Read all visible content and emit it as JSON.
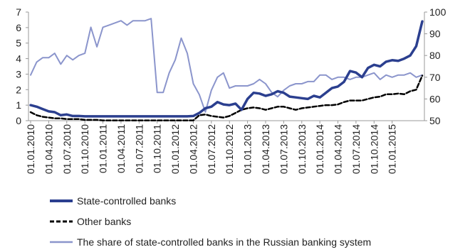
{
  "chart_data": {
    "type": "line",
    "title": "",
    "xlabel": "",
    "ylabel": "",
    "ylim_left": [
      0,
      7
    ],
    "ylim_right": [
      50,
      100
    ],
    "left_ticks": [
      "0",
      "1",
      "2",
      "3",
      "4",
      "5",
      "6",
      "7"
    ],
    "right_ticks": [
      "50",
      "60",
      "70",
      "80",
      "90",
      "100"
    ],
    "x_tick_labels": [
      "01.01.2010",
      "01.04.2010",
      "01.07.2010",
      "01.10.2010",
      "01.01.2011",
      "01.04.2011",
      "01.07.2011",
      "01.10.2011",
      "01.01.2012",
      "01.04.2012",
      "01.07.2012",
      "01.10.2012",
      "01.01.2013",
      "01.04.2013",
      "01.07.2013",
      "01.10.2013",
      "01.01.2014",
      "01.04.2014",
      "01.07.2014",
      "01.10.2014",
      "01.01.2015"
    ],
    "grid": false,
    "legend_position": "bottom",
    "series": [
      {
        "name": "State-controlled banks",
        "axis": "left",
        "color": "#2b3f8f",
        "style": "solid-thick",
        "values": [
          1.0,
          0.9,
          0.75,
          0.6,
          0.55,
          0.35,
          0.4,
          0.3,
          0.3,
          0.28,
          0.28,
          0.28,
          0.28,
          0.28,
          0.28,
          0.28,
          0.28,
          0.28,
          0.28,
          0.28,
          0.28,
          0.28,
          0.28,
          0.28,
          0.28,
          0.28,
          0.28,
          0.3,
          0.5,
          0.8,
          0.9,
          1.2,
          1.05,
          1.0,
          1.1,
          0.7,
          1.4,
          1.8,
          1.75,
          1.6,
          1.7,
          1.9,
          1.8,
          1.55,
          1.5,
          1.45,
          1.4,
          1.6,
          1.5,
          1.8,
          2.1,
          2.2,
          2.5,
          3.2,
          3.1,
          2.8,
          3.4,
          3.6,
          3.5,
          3.8,
          3.9,
          3.85,
          4.0,
          4.2,
          4.8,
          6.4
        ]
      },
      {
        "name": "Other banks",
        "axis": "left",
        "color": "#000000",
        "style": "dashed-thick",
        "values": [
          0.55,
          0.35,
          0.25,
          0.2,
          0.15,
          0.15,
          0.1,
          0.1,
          0.1,
          0.05,
          0.05,
          0.05,
          0.02,
          0.02,
          0.02,
          0.02,
          0.02,
          0.02,
          0.02,
          0.02,
          0.02,
          0.02,
          0.02,
          0.02,
          0.02,
          0.02,
          0.02,
          0.02,
          0.35,
          0.4,
          0.3,
          0.25,
          0.2,
          0.3,
          0.5,
          0.7,
          0.8,
          0.85,
          0.8,
          0.7,
          0.8,
          0.9,
          0.9,
          0.8,
          0.7,
          0.8,
          0.85,
          0.9,
          0.95,
          1.0,
          1.0,
          1.05,
          1.2,
          1.3,
          1.3,
          1.3,
          1.4,
          1.5,
          1.55,
          1.7,
          1.7,
          1.75,
          1.7,
          1.9,
          2.0,
          2.9
        ]
      },
      {
        "name": "The share of state-controlled banks in the Russian banking system",
        "axis": "right",
        "color": "#8b95cc",
        "style": "solid",
        "values": [
          71,
          77,
          79,
          79,
          81,
          76,
          80,
          78,
          80,
          81,
          93,
          84,
          93,
          94,
          95,
          96,
          94,
          96,
          96,
          96,
          97,
          63,
          63,
          72,
          78,
          88,
          81,
          67,
          62,
          54,
          64,
          70,
          72,
          65,
          66,
          66,
          66,
          67,
          69,
          67,
          63,
          61,
          64,
          66,
          67,
          67,
          68,
          68,
          71,
          71,
          69,
          70,
          70,
          69,
          70,
          70,
          71,
          72,
          69,
          71,
          70,
          71,
          71,
          72,
          70,
          71
        ]
      }
    ]
  }
}
